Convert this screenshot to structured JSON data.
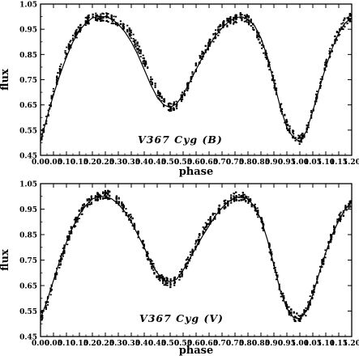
{
  "chart_data": [
    {
      "type": "scatter",
      "title": "",
      "annotation": "V367  Cyg  (B)",
      "xlabel": "phase",
      "ylabel": "flux",
      "xlim": [
        0.0,
        1.2
      ],
      "ylim": [
        0.45,
        1.05
      ],
      "x_ticks": [
        "0.00",
        "0.05",
        "0.10",
        "0.15",
        "0.20",
        "0.25",
        "0.30",
        "0.35",
        "0.40",
        "0.45",
        "0.50",
        "0.55",
        "0.60",
        "0.65",
        "0.70",
        "0.75",
        "0.80",
        "0.85",
        "0.90",
        "0.95",
        "1.00",
        "1.05",
        "1.10",
        "1.15",
        "1.20"
      ],
      "y_ticks": [
        "0.45",
        "0.55",
        "0.65",
        "0.75",
        "0.85",
        "0.95",
        "1.05"
      ],
      "grid": false,
      "series": [
        {
          "marker": "dot",
          "x": [
            0.0,
            0.025,
            0.05,
            0.075,
            0.1,
            0.125,
            0.15,
            0.175,
            0.2,
            0.225,
            0.25,
            0.275,
            0.3,
            0.325,
            0.35,
            0.375,
            0.4,
            0.425,
            0.45,
            0.475,
            0.5,
            0.525,
            0.55,
            0.575,
            0.6,
            0.625,
            0.65,
            0.675,
            0.7,
            0.725,
            0.75,
            0.775,
            0.8,
            0.825,
            0.85,
            0.875,
            0.9,
            0.925,
            0.95,
            0.975,
            1.0,
            1.025,
            1.05,
            1.075,
            1.1,
            1.125,
            1.15,
            1.175,
            1.2
          ],
          "y": [
            0.51,
            0.6,
            0.7,
            0.79,
            0.86,
            0.91,
            0.95,
            0.98,
            1.0,
            1.0,
            1.0,
            0.99,
            0.98,
            0.96,
            0.93,
            0.88,
            0.82,
            0.76,
            0.7,
            0.66,
            0.64,
            0.65,
            0.69,
            0.74,
            0.8,
            0.85,
            0.89,
            0.93,
            0.96,
            0.98,
            0.99,
            1.0,
            0.99,
            0.96,
            0.9,
            0.83,
            0.74,
            0.65,
            0.57,
            0.53,
            0.51,
            0.55,
            0.63,
            0.72,
            0.81,
            0.88,
            0.94,
            0.98,
            1.0
          ]
        },
        {
          "marker": "line",
          "x": [
            0.0,
            0.025,
            0.05,
            0.075,
            0.1,
            0.125,
            0.15,
            0.175,
            0.2,
            0.225,
            0.25,
            0.275,
            0.3,
            0.325,
            0.35,
            0.375,
            0.4,
            0.425,
            0.45,
            0.475,
            0.5,
            0.525,
            0.55,
            0.575,
            0.6,
            0.625,
            0.65,
            0.675,
            0.7,
            0.725,
            0.75,
            0.775,
            0.8,
            0.825,
            0.85,
            0.875,
            0.9,
            0.925,
            0.95,
            0.975,
            1.0,
            1.025,
            1.05,
            1.075,
            1.1,
            1.125,
            1.15,
            1.175,
            1.2
          ],
          "y": [
            0.505,
            0.6,
            0.69,
            0.77,
            0.84,
            0.9,
            0.945,
            0.975,
            0.995,
            1.0,
            1.0,
            0.99,
            0.97,
            0.94,
            0.9,
            0.85,
            0.79,
            0.73,
            0.68,
            0.65,
            0.64,
            0.655,
            0.69,
            0.74,
            0.79,
            0.84,
            0.885,
            0.925,
            0.955,
            0.98,
            0.995,
            1.0,
            0.99,
            0.965,
            0.915,
            0.84,
            0.74,
            0.64,
            0.56,
            0.52,
            0.505,
            0.545,
            0.625,
            0.715,
            0.8,
            0.875,
            0.935,
            0.975,
            0.995
          ]
        }
      ]
    },
    {
      "type": "scatter",
      "title": "",
      "annotation": "V367  Cyg  (V)",
      "xlabel": "phase",
      "ylabel": "flux",
      "xlim": [
        0.0,
        1.2
      ],
      "ylim": [
        0.45,
        1.05
      ],
      "x_ticks": [
        "0.00",
        "0.05",
        "0.10",
        "0.15",
        "0.20",
        "0.25",
        "0.30",
        "0.35",
        "0.40",
        "0.45",
        "0.50",
        "0.55",
        "0.60",
        "0.65",
        "0.70",
        "0.75",
        "0.80",
        "0.85",
        "0.90",
        "0.95",
        "1.00",
        "1.05",
        "1.10",
        "1.15",
        "1.20"
      ],
      "y_ticks": [
        "0.45",
        "0.55",
        "0.65",
        "0.75",
        "0.85",
        "0.95",
        "1.05"
      ],
      "grid": false,
      "series": [
        {
          "marker": "dot",
          "x": [
            0.0,
            0.025,
            0.05,
            0.075,
            0.1,
            0.125,
            0.15,
            0.175,
            0.2,
            0.225,
            0.25,
            0.275,
            0.3,
            0.325,
            0.35,
            0.375,
            0.4,
            0.425,
            0.45,
            0.475,
            0.5,
            0.525,
            0.55,
            0.575,
            0.6,
            0.625,
            0.65,
            0.675,
            0.7,
            0.725,
            0.75,
            0.775,
            0.8,
            0.825,
            0.85,
            0.875,
            0.9,
            0.925,
            0.95,
            0.975,
            1.0,
            1.025,
            1.05,
            1.075,
            1.1,
            1.125,
            1.15,
            1.175,
            1.2
          ],
          "y": [
            0.52,
            0.58,
            0.66,
            0.74,
            0.82,
            0.88,
            0.93,
            0.97,
            0.99,
            1.0,
            1.01,
            1.0,
            0.98,
            0.95,
            0.91,
            0.86,
            0.8,
            0.74,
            0.69,
            0.67,
            0.66,
            0.67,
            0.71,
            0.76,
            0.81,
            0.86,
            0.9,
            0.93,
            0.96,
            0.98,
            1.0,
            1.0,
            0.99,
            0.96,
            0.91,
            0.83,
            0.73,
            0.63,
            0.56,
            0.53,
            0.52,
            0.55,
            0.62,
            0.7,
            0.78,
            0.85,
            0.91,
            0.95,
            0.98
          ]
        },
        {
          "marker": "line",
          "x": [
            0.0,
            0.025,
            0.05,
            0.075,
            0.1,
            0.125,
            0.15,
            0.175,
            0.2,
            0.225,
            0.25,
            0.275,
            0.3,
            0.325,
            0.35,
            0.375,
            0.4,
            0.425,
            0.45,
            0.475,
            0.5,
            0.525,
            0.55,
            0.575,
            0.6,
            0.625,
            0.65,
            0.675,
            0.7,
            0.725,
            0.75,
            0.775,
            0.8,
            0.825,
            0.85,
            0.875,
            0.9,
            0.925,
            0.95,
            0.975,
            1.0,
            1.025,
            1.05,
            1.075,
            1.1,
            1.125,
            1.15,
            1.175,
            1.2
          ],
          "y": [
            0.52,
            0.59,
            0.67,
            0.75,
            0.82,
            0.88,
            0.93,
            0.965,
            0.99,
            1.0,
            1.0,
            0.99,
            0.97,
            0.94,
            0.9,
            0.85,
            0.8,
            0.74,
            0.7,
            0.67,
            0.665,
            0.675,
            0.71,
            0.755,
            0.8,
            0.845,
            0.885,
            0.925,
            0.955,
            0.98,
            0.995,
            1.0,
            0.99,
            0.96,
            0.91,
            0.83,
            0.73,
            0.63,
            0.56,
            0.525,
            0.52,
            0.55,
            0.615,
            0.7,
            0.78,
            0.85,
            0.905,
            0.95,
            0.98
          ]
        }
      ]
    }
  ]
}
